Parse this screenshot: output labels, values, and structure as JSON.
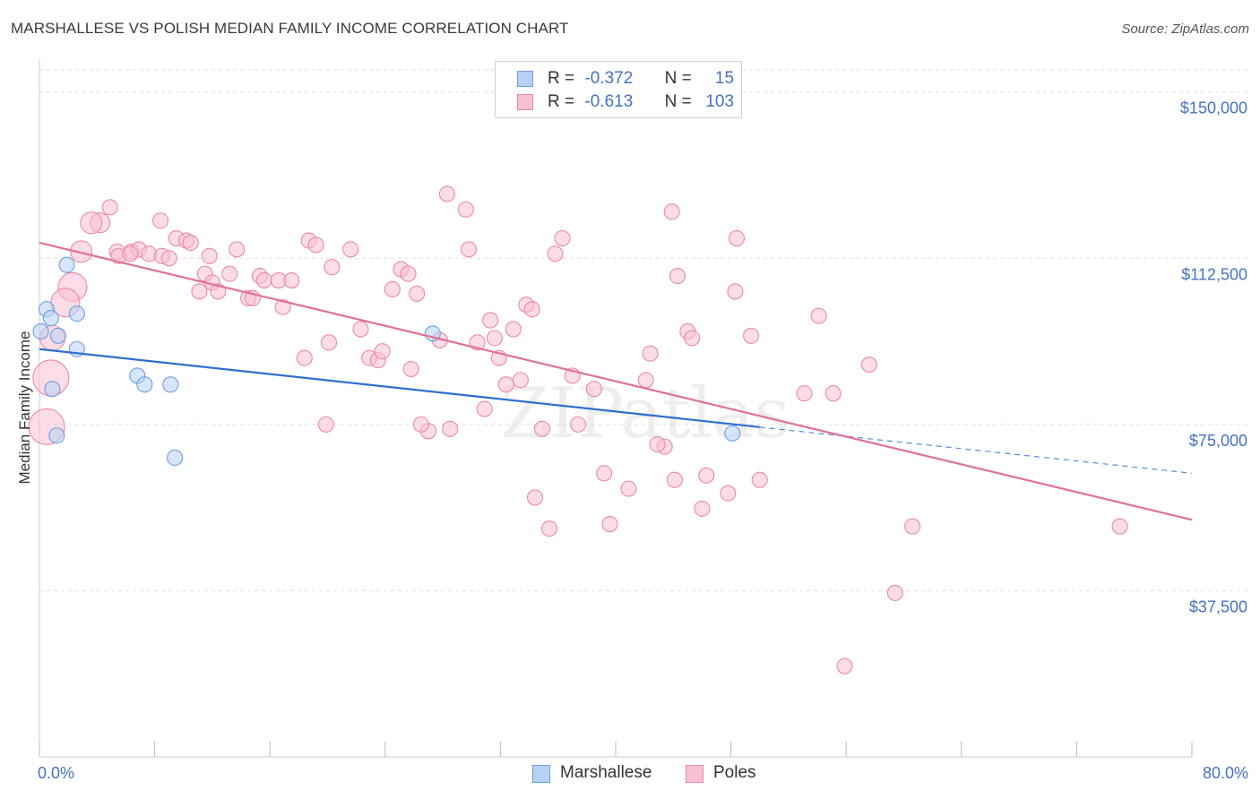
{
  "title": "MARSHALLESE VS POLISH MEDIAN FAMILY INCOME CORRELATION CHART",
  "source": "Source: ZipAtlas.com",
  "watermark": "ZIPatlas",
  "legend": {
    "r_label": "R =",
    "n_label": "N =",
    "rows": [
      {
        "name": "Marshallese",
        "r": "-0.372",
        "n": "15",
        "fill": "#b7d1f5",
        "stroke": "#6f9ee0"
      },
      {
        "name": "Poles",
        "r": "-0.613",
        "n": "103",
        "fill": "#f9c0d1",
        "stroke": "#e98aa8"
      }
    ]
  },
  "chart_data": {
    "type": "scatter",
    "title": "MARSHALLESE VS POLISH MEDIAN FAMILY INCOME CORRELATION CHART",
    "xlabel": "",
    "ylabel": "Median Family Income",
    "xlim": [
      0,
      80
    ],
    "ylim": [
      0,
      155000
    ],
    "x_tick_labels": [
      "0.0%",
      "80.0%"
    ],
    "y_ticks": [
      37500,
      75000,
      112500,
      150000
    ],
    "y_tick_labels": [
      "$37,500",
      "$75,000",
      "$112,500",
      "$150,000"
    ],
    "grid": true,
    "legend_position": "bottom",
    "series": [
      {
        "name": "Marshallese",
        "color": "#6f9ee0",
        "fill": "#b7d1f5",
        "line_color": "#2e6fce",
        "trend": {
          "x_start": 0,
          "y_start": 92000,
          "x_solid_end": 50,
          "y_solid_end": 74400,
          "x_end": 80,
          "y_end": 64000
        },
        "points": [
          [
            0.5,
            101000
          ],
          [
            0.8,
            99000
          ],
          [
            0.1,
            96000
          ],
          [
            1.3,
            95000
          ],
          [
            2.6,
            100000
          ],
          [
            1.9,
            111000
          ],
          [
            2.6,
            92000
          ],
          [
            0.9,
            83000
          ],
          [
            1.2,
            72500
          ],
          [
            6.8,
            86000
          ],
          [
            7.3,
            84000
          ],
          [
            9.1,
            84000
          ],
          [
            9.4,
            67500
          ],
          [
            27.3,
            95500
          ],
          [
            48.1,
            73000
          ]
        ]
      },
      {
        "name": "Poles",
        "color": "#e98aa8",
        "fill": "#f9c0d1",
        "line_color": "#e0709a",
        "trend": {
          "x_start": 0,
          "y_start": 116000,
          "x_end": 80,
          "y_end": 53500
        },
        "points": [
          [
            0.9,
            94500
          ],
          [
            2.3,
            106000
          ],
          [
            1.8,
            102500
          ],
          [
            0.8,
            85500
          ],
          [
            0.5,
            74500
          ],
          [
            2.9,
            114000
          ],
          [
            4.2,
            120500
          ],
          [
            4.9,
            124000
          ],
          [
            3.6,
            120500
          ],
          [
            5.4,
            114000
          ],
          [
            5.5,
            113000
          ],
          [
            6.4,
            114000
          ],
          [
            6.9,
            114500
          ],
          [
            7.6,
            113500
          ],
          [
            8.5,
            113000
          ],
          [
            6.3,
            113500
          ],
          [
            8.4,
            121000
          ],
          [
            9.5,
            117000
          ],
          [
            10.2,
            116500
          ],
          [
            10.5,
            116000
          ],
          [
            9.0,
            112500
          ],
          [
            11.8,
            113000
          ],
          [
            11.5,
            109000
          ],
          [
            12.0,
            107000
          ],
          [
            12.4,
            105000
          ],
          [
            11.1,
            105000
          ],
          [
            13.2,
            109000
          ],
          [
            13.7,
            114500
          ],
          [
            14.5,
            103500
          ],
          [
            14.8,
            103500
          ],
          [
            15.3,
            108500
          ],
          [
            15.6,
            107500
          ],
          [
            16.6,
            107500
          ],
          [
            17.5,
            107500
          ],
          [
            16.9,
            101500
          ],
          [
            18.7,
            116500
          ],
          [
            19.2,
            115500
          ],
          [
            18.4,
            90000
          ],
          [
            20.1,
            93500
          ],
          [
            20.3,
            110500
          ],
          [
            21.6,
            114500
          ],
          [
            22.3,
            96500
          ],
          [
            22.9,
            90000
          ],
          [
            23.5,
            89500
          ],
          [
            23.8,
            91500
          ],
          [
            24.5,
            105500
          ],
          [
            25.1,
            110000
          ],
          [
            25.6,
            109000
          ],
          [
            25.8,
            87500
          ],
          [
            26.2,
            104500
          ],
          [
            27.0,
            73500
          ],
          [
            27.8,
            94000
          ],
          [
            28.3,
            127000
          ],
          [
            28.5,
            74000
          ],
          [
            29.6,
            123500
          ],
          [
            29.8,
            114500
          ],
          [
            30.4,
            93500
          ],
          [
            30.9,
            78500
          ],
          [
            31.3,
            98500
          ],
          [
            31.6,
            94500
          ],
          [
            31.9,
            90000
          ],
          [
            32.4,
            84000
          ],
          [
            32.9,
            96500
          ],
          [
            33.4,
            85000
          ],
          [
            33.8,
            102000
          ],
          [
            34.2,
            101000
          ],
          [
            34.4,
            58500
          ],
          [
            34.9,
            74000
          ],
          [
            35.4,
            51500
          ],
          [
            35.8,
            113500
          ],
          [
            36.3,
            117000
          ],
          [
            37.0,
            86000
          ],
          [
            37.4,
            75000
          ],
          [
            38.5,
            83000
          ],
          [
            39.2,
            64000
          ],
          [
            39.6,
            52500
          ],
          [
            40.9,
            60500
          ],
          [
            42.1,
            85000
          ],
          [
            42.4,
            91000
          ],
          [
            43.4,
            70000
          ],
          [
            43.9,
            123000
          ],
          [
            44.1,
            62500
          ],
          [
            44.3,
            108500
          ],
          [
            45.0,
            96000
          ],
          [
            45.3,
            94500
          ],
          [
            46.0,
            56000
          ],
          [
            46.3,
            63500
          ],
          [
            47.8,
            59500
          ],
          [
            48.3,
            105000
          ],
          [
            48.4,
            117000
          ],
          [
            49.4,
            95000
          ],
          [
            50.0,
            62500
          ],
          [
            53.1,
            82000
          ],
          [
            54.1,
            99500
          ],
          [
            55.1,
            82000
          ],
          [
            57.6,
            88500
          ],
          [
            59.4,
            37000
          ],
          [
            60.6,
            52000
          ],
          [
            55.9,
            20500
          ],
          [
            75.0,
            52000
          ],
          [
            26.5,
            75000
          ],
          [
            19.9,
            75000
          ],
          [
            42.9,
            70500
          ]
        ]
      }
    ]
  }
}
